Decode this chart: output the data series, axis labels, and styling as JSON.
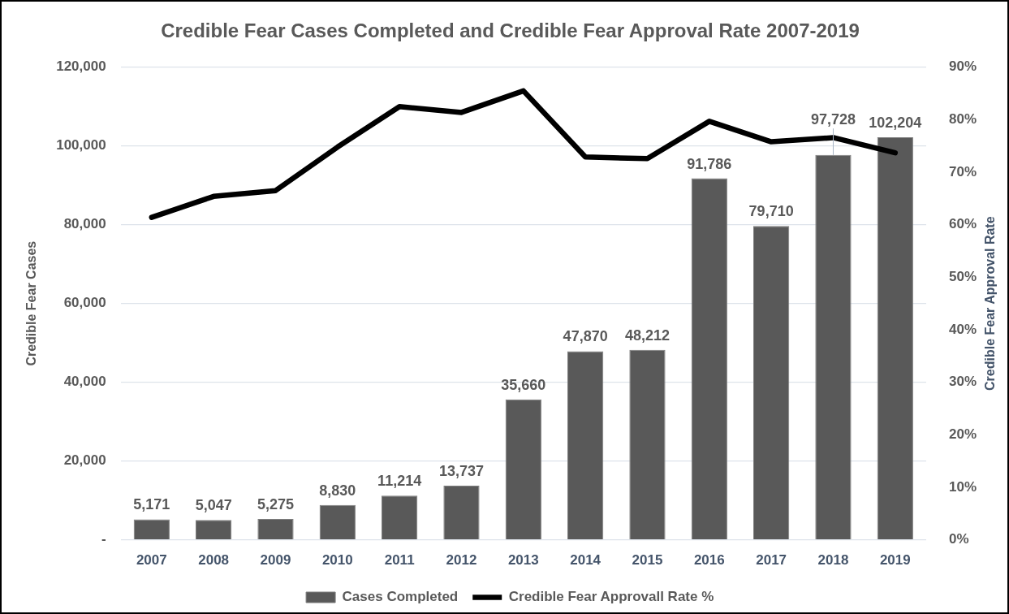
{
  "chart_data": {
    "type": "bar",
    "title": "Credible Fear Cases Completed and Credible Fear Approval Rate 2007-2019",
    "ylabel": "Credible Fear Cases",
    "y2label": "Credible Fear Approval Rate",
    "categories": [
      "2007",
      "2008",
      "2009",
      "2010",
      "2011",
      "2012",
      "2013",
      "2014",
      "2015",
      "2016",
      "2017",
      "2018",
      "2019"
    ],
    "series": [
      {
        "name": "Cases Completed",
        "color": "#595959",
        "values": [
          5171,
          5047,
          5275,
          8830,
          11214,
          13737,
          35660,
          47870,
          48212,
          91786,
          79710,
          97728,
          102204
        ],
        "value_labels": [
          "5,171",
          "5,047",
          "5,275",
          "8,830",
          "11,214",
          "13,737",
          "35,660",
          "47,870",
          "48,212",
          "91,786",
          "79,710",
          "97,728",
          "102,204"
        ]
      },
      {
        "name": "Credible Fear Approvall Rate %",
        "type": "line",
        "axis": "y2",
        "color": "#000000",
        "values": [
          61.4,
          65.4,
          66.5,
          74.8,
          82.5,
          81.4,
          85.5,
          72.9,
          72.6,
          79.7,
          75.8,
          76.6,
          73.7
        ]
      }
    ],
    "ylim": [
      0,
      120000
    ],
    "yticks": [
      {
        "value": 0,
        "label": "-"
      },
      {
        "value": 20000,
        "label": "20,000"
      },
      {
        "value": 40000,
        "label": "40,000"
      },
      {
        "value": 60000,
        "label": "60,000"
      },
      {
        "value": 80000,
        "label": "80,000"
      },
      {
        "value": 100000,
        "label": "100,000"
      },
      {
        "value": 120000,
        "label": "120,000"
      }
    ],
    "y2lim": [
      0,
      90
    ],
    "y2ticks": [
      {
        "value": 0,
        "label": "0%"
      },
      {
        "value": 10,
        "label": "10%"
      },
      {
        "value": 20,
        "label": "20%"
      },
      {
        "value": 30,
        "label": "30%"
      },
      {
        "value": 40,
        "label": "40%"
      },
      {
        "value": 50,
        "label": "50%"
      },
      {
        "value": 60,
        "label": "60%"
      },
      {
        "value": 70,
        "label": "70%"
      },
      {
        "value": 80,
        "label": "80%"
      },
      {
        "value": 90,
        "label": "90%"
      }
    ],
    "grid": "y",
    "legend": "bottom",
    "marker": "none"
  }
}
